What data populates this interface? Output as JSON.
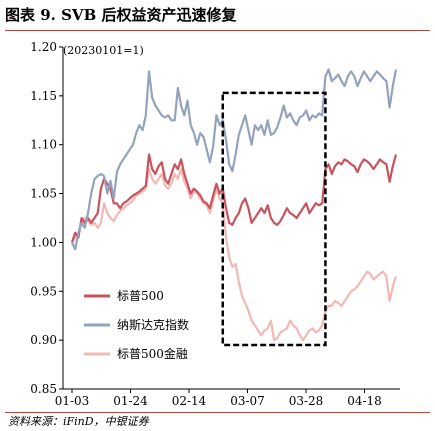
{
  "figure": {
    "title": "图表 9. SVB 后权益资产迅速修复",
    "source": "资料来源：iFinD，中银证券"
  },
  "chart_data": {
    "type": "line",
    "annotation": "(20230101=1)",
    "ylim": [
      0.85,
      1.2
    ],
    "yticks": [
      "0.85",
      "0.90",
      "0.95",
      "1.00",
      "1.05",
      "1.10",
      "1.15",
      "1.20"
    ],
    "xticks": [
      "01-03",
      "01-24",
      "02-14",
      "03-07",
      "03-28",
      "04-18"
    ],
    "legend_position": "bottom-left",
    "highlight_box": {
      "x_from": 47,
      "x_to": 79,
      "y_from": 0.895,
      "y_to": 1.153,
      "style": "dashed",
      "color": "#000000"
    },
    "series": [
      {
        "name": "标普500",
        "color": "#c9535d",
        "values": [
          1.0,
          1.01,
          1.005,
          1.025,
          1.02,
          1.025,
          1.02,
          1.025,
          1.03,
          1.055,
          1.065,
          1.06,
          1.055,
          1.04,
          1.04,
          1.035,
          1.04,
          1.042,
          1.045,
          1.048,
          1.05,
          1.052,
          1.055,
          1.058,
          1.09,
          1.075,
          1.07,
          1.078,
          1.082,
          1.065,
          1.06,
          1.07,
          1.08,
          1.075,
          1.085,
          1.07,
          1.06,
          1.05,
          1.055,
          1.052,
          1.048,
          1.042,
          1.04,
          1.035,
          1.048,
          1.06,
          1.05,
          1.055,
          1.035,
          1.02,
          1.018,
          1.025,
          1.03,
          1.04,
          1.045,
          1.035,
          1.02,
          1.025,
          1.03,
          1.035,
          1.03,
          1.038,
          1.025,
          1.02,
          1.018,
          1.022,
          1.028,
          1.035,
          1.03,
          1.028,
          1.025,
          1.03,
          1.035,
          1.04,
          1.03,
          1.035,
          1.04,
          1.038,
          1.04,
          1.075,
          1.08,
          1.07,
          1.078,
          1.082,
          1.08,
          1.085,
          1.083,
          1.08,
          1.078,
          1.072,
          1.08,
          1.085,
          1.083,
          1.08,
          1.075,
          1.08,
          1.085,
          1.082,
          1.08,
          1.062,
          1.078,
          1.09
        ]
      },
      {
        "name": "纳斯达克指数",
        "color": "#93a3bd",
        "values": [
          1.0,
          0.993,
          1.01,
          1.02,
          1.015,
          1.03,
          1.05,
          1.065,
          1.068,
          1.07,
          1.068,
          1.05,
          1.063,
          1.045,
          1.072,
          1.08,
          1.085,
          1.09,
          1.095,
          1.1,
          1.112,
          1.12,
          1.115,
          1.13,
          1.175,
          1.148,
          1.14,
          1.135,
          1.13,
          1.128,
          1.13,
          1.125,
          1.125,
          1.158,
          1.14,
          1.13,
          1.145,
          1.12,
          1.112,
          1.1,
          1.112,
          1.108,
          1.095,
          1.082,
          1.098,
          1.13,
          1.12,
          1.125,
          1.105,
          1.08,
          1.073,
          1.09,
          1.11,
          1.12,
          1.13,
          1.115,
          1.1,
          1.12,
          1.115,
          1.12,
          1.11,
          1.125,
          1.11,
          1.112,
          1.118,
          1.128,
          1.14,
          1.128,
          1.132,
          1.125,
          1.12,
          1.128,
          1.13,
          1.135,
          1.125,
          1.13,
          1.128,
          1.132,
          1.13,
          1.17,
          1.177,
          1.165,
          1.168,
          1.172,
          1.165,
          1.16,
          1.17,
          1.175,
          1.17,
          1.16,
          1.168,
          1.175,
          1.17,
          1.165,
          1.17,
          1.175,
          1.172,
          1.168,
          1.165,
          1.138,
          1.16,
          1.177
        ]
      },
      {
        "name": "标普500金融",
        "color": "#f2b8b4",
        "values": [
          1.0,
          1.005,
          1.01,
          1.02,
          1.025,
          1.022,
          1.018,
          1.02,
          1.015,
          1.02,
          1.04,
          1.03,
          1.025,
          1.022,
          1.028,
          1.032,
          1.035,
          1.038,
          1.04,
          1.043,
          1.048,
          1.05,
          1.052,
          1.055,
          1.075,
          1.065,
          1.06,
          1.065,
          1.07,
          1.058,
          1.055,
          1.06,
          1.07,
          1.065,
          1.075,
          1.062,
          1.055,
          1.045,
          1.052,
          1.05,
          1.045,
          1.04,
          1.038,
          1.03,
          1.042,
          1.055,
          1.045,
          1.04,
          1.005,
          0.985,
          0.975,
          0.978,
          0.96,
          0.945,
          0.938,
          0.93,
          0.92,
          0.915,
          0.91,
          0.905,
          0.91,
          0.912,
          0.92,
          0.9,
          0.902,
          0.908,
          0.91,
          0.912,
          0.92,
          0.915,
          0.912,
          0.905,
          0.9,
          0.905,
          0.91,
          0.912,
          0.908,
          0.91,
          0.915,
          0.93,
          0.935,
          0.935,
          0.94,
          0.938,
          0.935,
          0.94,
          0.945,
          0.95,
          0.952,
          0.955,
          0.96,
          0.965,
          0.97,
          0.968,
          0.962,
          0.965,
          0.968,
          0.97,
          0.965,
          0.94,
          0.955,
          0.965
        ]
      }
    ]
  }
}
